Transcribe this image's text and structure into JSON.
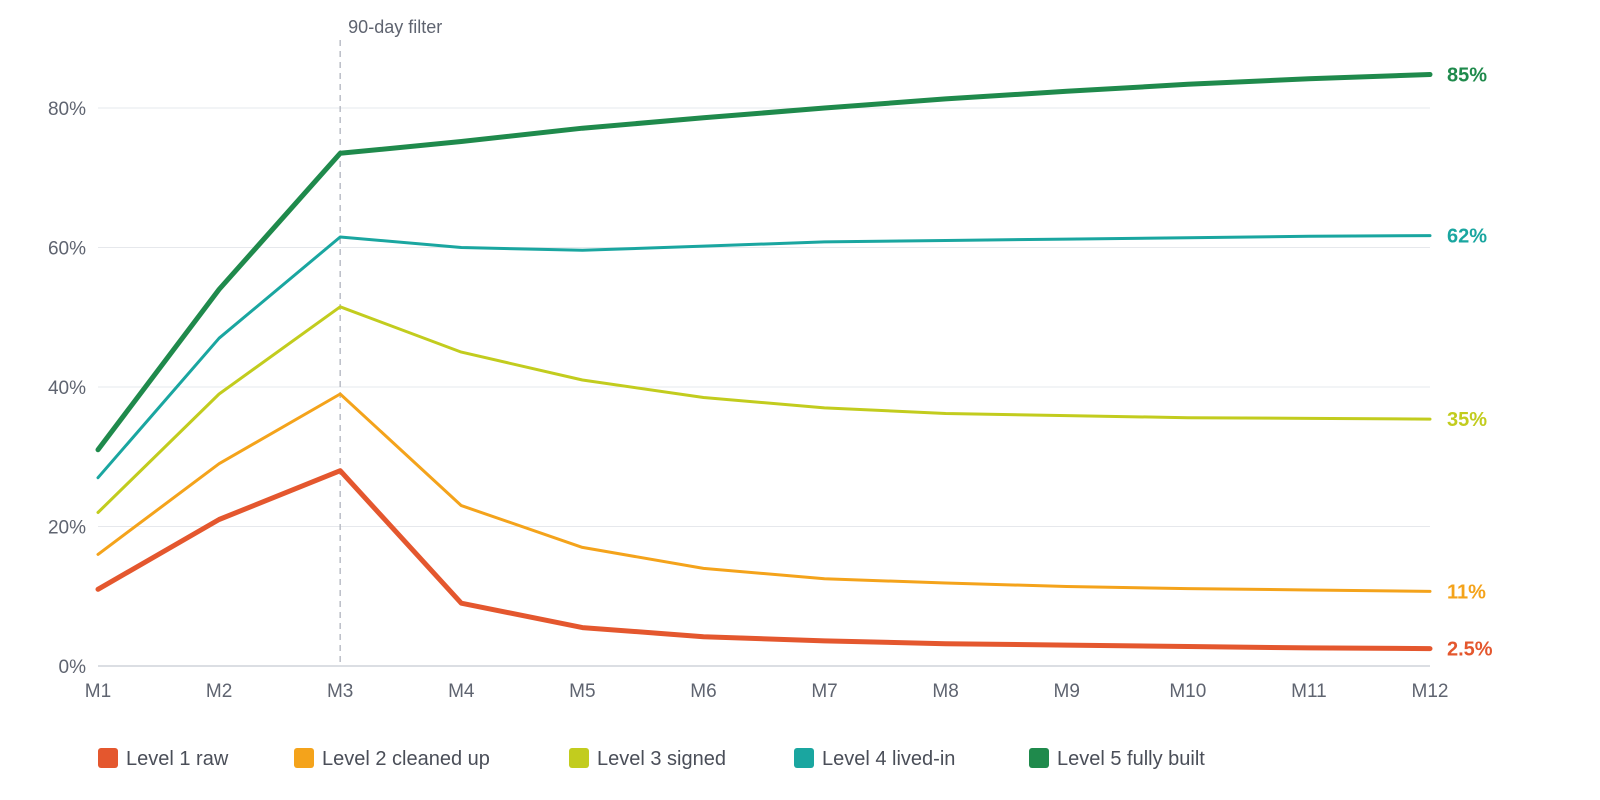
{
  "chart_data": {
    "type": "line",
    "title": "",
    "xlabel": "",
    "ylabel": "",
    "categories": [
      "M1",
      "M2",
      "M3",
      "M4",
      "M5",
      "M6",
      "M7",
      "M8",
      "M9",
      "M10",
      "M11",
      "M12"
    ],
    "ylim": [
      0,
      90
    ],
    "yticks": [
      0,
      20,
      40,
      60,
      80
    ],
    "ytick_labels": [
      "0%",
      "20%",
      "40%",
      "60%",
      "80%"
    ],
    "grid": true,
    "legend_position": "bottom-left",
    "annotations": [
      {
        "x": "M3",
        "label": "90-day filter",
        "style": "dashed-vertical-line"
      }
    ],
    "series": [
      {
        "name": "Level 1 raw",
        "color": "#e4572e",
        "end_label": "2.5%",
        "emphasis": "thick",
        "values": [
          11,
          21,
          28,
          9,
          5.5,
          4.2,
          3.6,
          3.2,
          3.0,
          2.8,
          2.6,
          2.5
        ]
      },
      {
        "name": "Level 2 cleaned up",
        "color": "#f4a31b",
        "end_label": "11%",
        "emphasis": "normal",
        "values": [
          16,
          29,
          39,
          23,
          17,
          14,
          12.5,
          11.9,
          11.4,
          11.1,
          10.9,
          10.7
        ]
      },
      {
        "name": "Level 3 signed",
        "color": "#c2cc1e",
        "end_label": "35%",
        "emphasis": "normal",
        "values": [
          22,
          39,
          51.5,
          45,
          41,
          38.5,
          37,
          36.2,
          35.9,
          35.6,
          35.5,
          35.4
        ]
      },
      {
        "name": "Level 4 lived-in",
        "color": "#1aa6a0",
        "end_label": "62%",
        "emphasis": "normal",
        "values": [
          27,
          47,
          61.5,
          60,
          59.6,
          60.2,
          60.8,
          61.0,
          61.2,
          61.4,
          61.6,
          61.7
        ]
      },
      {
        "name": "Level 5 fully built",
        "color": "#1f8a4c",
        "end_label": "85%",
        "emphasis": "thick",
        "values": [
          31,
          54,
          73.5,
          75.2,
          77.1,
          78.6,
          80.0,
          81.3,
          82.4,
          83.4,
          84.2,
          84.8
        ]
      }
    ]
  }
}
